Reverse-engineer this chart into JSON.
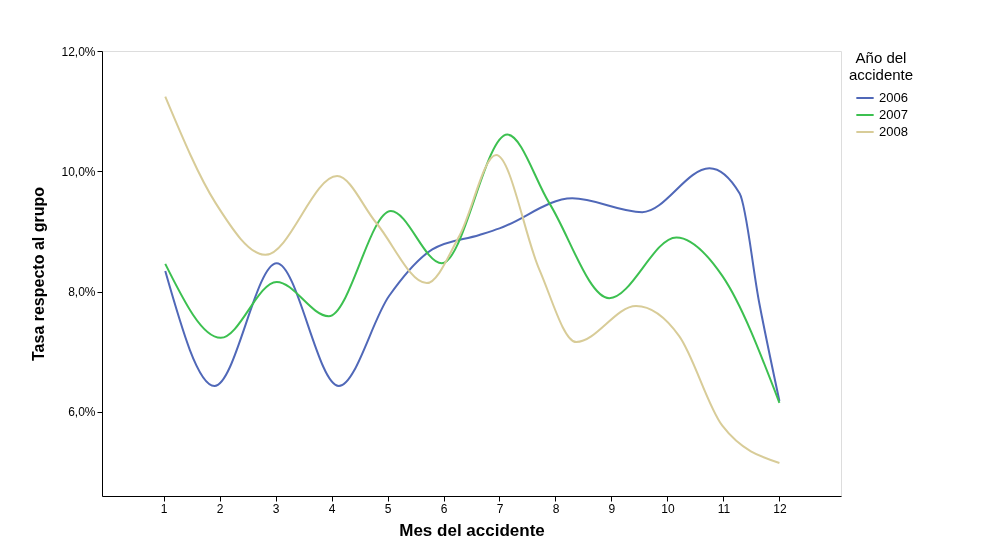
{
  "chart_data": {
    "type": "line",
    "xlabel": "Mes del accidente",
    "ylabel": "Tasa respecto al grupo",
    "legend_title": "Año del accidente",
    "xlim": [
      -0.1,
      13.1
    ],
    "xticks": [
      1,
      2,
      3,
      4,
      5,
      6,
      7,
      8,
      9,
      10,
      11,
      12
    ],
    "ylim": [
      4.6,
      12.0
    ],
    "yticks": [
      {
        "value": 6,
        "label": "6,0%"
      },
      {
        "value": 8,
        "label": "8,0%"
      },
      {
        "value": 10,
        "label": "10,0%"
      },
      {
        "value": 12,
        "label": "12,0%"
      }
    ],
    "grid": false,
    "legend": "top right",
    "marker": "none",
    "line_style": "solid",
    "series": [
      {
        "name": "2006",
        "color": "#5068b8",
        "x": [
          1.03,
          1.91,
          3.02,
          4.13,
          5.03,
          5.8,
          6.64,
          7.0,
          8.3,
          9.55,
          10.75,
          11.29,
          11.64,
          12
        ],
        "values": [
          8.34,
          6.43,
          8.47,
          6.43,
          7.93,
          8.7,
          8.94,
          9.05,
          9.55,
          9.32,
          10.05,
          9.63,
          7.81,
          6.18
        ]
      },
      {
        "name": "2007",
        "color": "#3cc050",
        "x": [
          1.03,
          2.02,
          3.02,
          3.95,
          5.06,
          5.97,
          7.14,
          7.89,
          8.96,
          10.16,
          10.98,
          12
        ],
        "values": [
          8.46,
          7.23,
          8.16,
          7.59,
          9.34,
          8.47,
          10.61,
          9.47,
          7.89,
          8.9,
          8.26,
          6.15
        ]
      },
      {
        "name": "2008",
        "color": "#d8cc98",
        "x": [
          1.03,
          1.93,
          2.82,
          4.1,
          4.8,
          5.7,
          6.28,
          6.94,
          7.71,
          8.37,
          9.44,
          10.21,
          10.98,
          12
        ],
        "values": [
          11.24,
          9.47,
          8.61,
          9.92,
          9.14,
          8.14,
          8.92,
          10.27,
          8.37,
          7.16,
          7.76,
          7.26,
          5.77,
          5.15
        ]
      }
    ]
  }
}
